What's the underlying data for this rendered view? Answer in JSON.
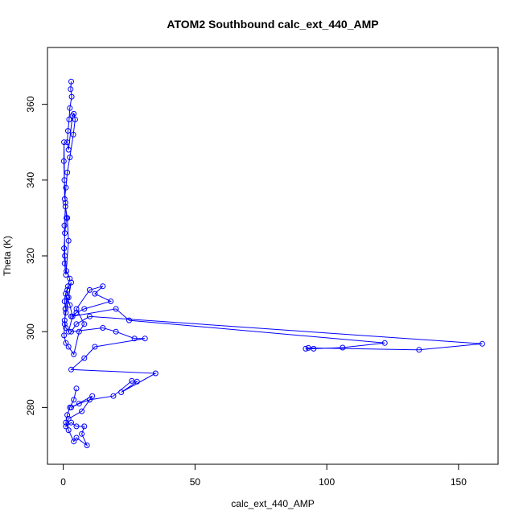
{
  "chart_data": {
    "type": "line",
    "title": "ATOM2 Southbound calc_ext_440_AMP",
    "xlabel": "calc_ext_440_AMP",
    "ylabel": "Theta (K)",
    "xlim": [
      -6,
      165
    ],
    "ylim": [
      265,
      375
    ],
    "x_ticks": [
      0,
      50,
      100,
      150
    ],
    "y_ticks": [
      280,
      300,
      320,
      340,
      360
    ],
    "grid": false,
    "legend": "none",
    "series_color": "#0000ff",
    "series": [
      {
        "x": [
          3.0,
          2.8,
          3.2,
          2.5,
          2.2,
          1.8,
          1.5,
          2.0,
          3.5,
          4.0,
          4.5,
          3.8,
          2.5,
          1.5,
          1.0,
          0.5,
          0.3,
          0.2,
          0.4,
          0.8,
          1.2,
          0.6,
          0.3,
          0.5,
          1.0,
          2.0,
          1.5,
          0.8,
          0.4,
          0.6,
          1.2,
          2.5,
          1.8,
          0.9,
          0.5,
          0.8,
          1.5,
          3.0,
          2.0,
          1.0,
          0.5,
          1.0,
          2.0,
          3.5,
          2.5,
          1.5,
          0.8,
          0.5,
          0.3,
          1.0,
          2.0,
          4.0,
          6.0,
          8.0,
          5.0,
          10.0,
          15.0,
          12.0,
          18.0,
          8.0,
          5.0,
          3.0,
          20.0,
          25.0,
          122.0,
          106.0,
          95.0,
          92.0,
          93.0,
          135.0,
          159.0,
          10.0,
          5.0,
          3.0,
          15.0,
          20.0,
          27.0,
          31.0,
          12.0,
          8.0,
          3.0,
          35.0,
          22.0,
          28.0,
          26.0,
          19.0,
          10.0,
          6.0,
          3.0,
          11.0,
          7.0,
          2.0,
          1.0,
          3.0,
          5.0,
          8.0,
          7.0,
          9.0,
          5.0,
          4.0,
          2.0,
          1.0,
          1.5,
          2.5,
          4.0,
          5.0
        ],
        "y": [
          366.0,
          364.0,
          362.0,
          359.0,
          356.0,
          353.0,
          350.0,
          348.0,
          357.0,
          357.5,
          356.0,
          352.0,
          346.0,
          342.0,
          338.0,
          335.0,
          350.0,
          345.0,
          340.0,
          334.0,
          330.0,
          326.0,
          322.0,
          318.0,
          315.0,
          324.0,
          330.0,
          333.0,
          328.0,
          320.0,
          316.0,
          314.0,
          312.0,
          310.0,
          308.0,
          306.0,
          311.0,
          313.0,
          309.0,
          305.0,
          303.0,
          301.0,
          300.0,
          304.0,
          307.0,
          309.0,
          306.0,
          302.0,
          299.0,
          297.0,
          296.0,
          294.0,
          300.0,
          302.0,
          306.0,
          311.0,
          312.0,
          310.0,
          308.0,
          306.0,
          305.0,
          304.0,
          306.0,
          303.0,
          297.0,
          295.8,
          295.5,
          295.5,
          295.7,
          295.2,
          296.8,
          304.0,
          302.0,
          300.0,
          301.0,
          300.0,
          298.2,
          298.2,
          296.0,
          293.0,
          290.0,
          289.0,
          284.0,
          286.8,
          287.0,
          283.0,
          282.0,
          281.0,
          280.0,
          283.0,
          279.0,
          277.0,
          275.0,
          276.0,
          275.0,
          275.0,
          273.0,
          270.0,
          272.0,
          271.0,
          274.0,
          276.0,
          278.0,
          280.0,
          282.0,
          285.0
        ]
      }
    ]
  }
}
